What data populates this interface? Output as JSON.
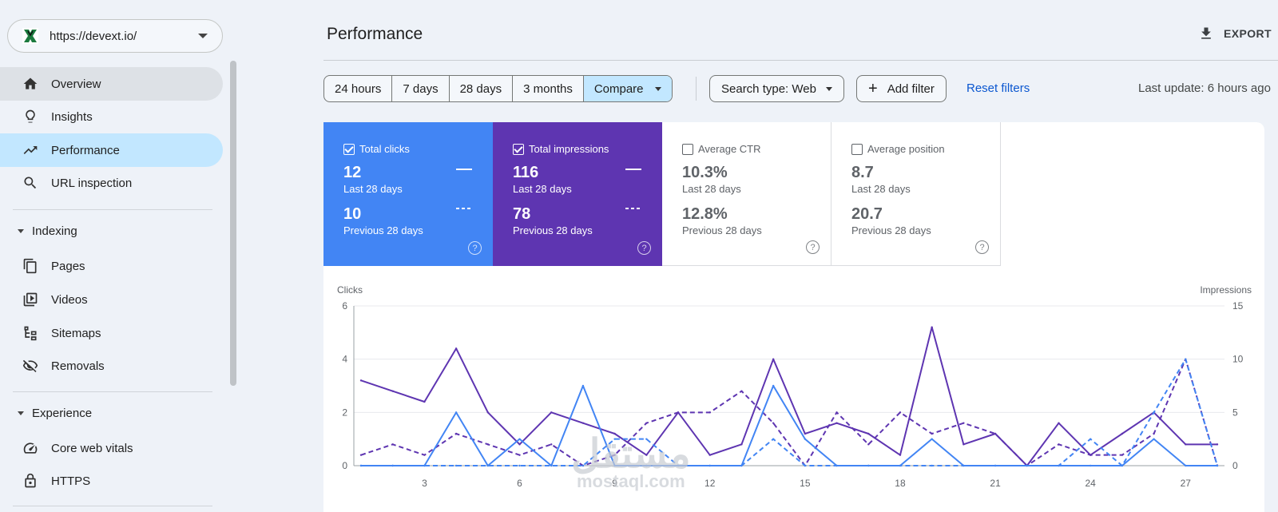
{
  "property": {
    "url": "https://devext.io/"
  },
  "nav": {
    "overview": "Overview",
    "insights": "Insights",
    "performance": "Performance",
    "url_inspection": "URL inspection",
    "indexing": "Indexing",
    "pages": "Pages",
    "videos": "Videos",
    "sitemaps": "Sitemaps",
    "removals": "Removals",
    "experience": "Experience",
    "core_web_vitals": "Core web vitals",
    "https": "HTTPS"
  },
  "header": {
    "title": "Performance",
    "export": "EXPORT"
  },
  "filters": {
    "ranges": [
      "24 hours",
      "7 days",
      "28 days",
      "3 months"
    ],
    "compare": "Compare",
    "search_type": "Search type: Web",
    "add_filter": "Add filter",
    "reset": "Reset filters",
    "last_update": "Last update: 6 hours ago"
  },
  "metrics": {
    "clicks": {
      "label": "Total clicks",
      "current": "12",
      "current_period": "Last 28 days",
      "previous": "10",
      "previous_period": "Previous 28 days",
      "checked": true
    },
    "impressions": {
      "label": "Total impressions",
      "current": "116",
      "current_period": "Last 28 days",
      "previous": "78",
      "previous_period": "Previous 28 days",
      "checked": true
    },
    "ctr": {
      "label": "Average CTR",
      "current": "10.3%",
      "current_period": "Last 28 days",
      "previous": "12.8%",
      "previous_period": "Previous 28 days",
      "checked": false
    },
    "position": {
      "label": "Average position",
      "current": "8.7",
      "current_period": "Last 28 days",
      "previous": "20.7",
      "previous_period": "Previous 28 days",
      "checked": false
    }
  },
  "colors": {
    "clicks": "#4285f4",
    "impressions": "#5e35b1",
    "accent": "#c2e7ff",
    "link": "#0b57d0"
  },
  "watermark": {
    "arabic": "مستقل",
    "latin": "mostaql.com"
  },
  "chart_data": {
    "type": "line",
    "ylabel_left": "Clicks",
    "ylabel_right": "Impressions",
    "ylim_left": [
      0,
      6
    ],
    "ylim_right": [
      0,
      15
    ],
    "y_ticks_left": [
      0,
      2,
      4,
      6
    ],
    "y_ticks_right": [
      0,
      5,
      10,
      15
    ],
    "x": [
      1,
      2,
      3,
      4,
      5,
      6,
      7,
      8,
      9,
      10,
      11,
      12,
      13,
      14,
      15,
      16,
      17,
      18,
      19,
      20,
      21,
      22,
      23,
      24,
      25,
      26,
      27,
      28
    ],
    "x_ticks": [
      3,
      6,
      9,
      12,
      15,
      18,
      21,
      24,
      27
    ],
    "grid": true,
    "series": [
      {
        "axis": "right",
        "style": "solid",
        "color": "#5e35b1",
        "values": [
          8,
          7,
          6,
          11,
          5,
          2,
          5,
          4,
          3,
          1,
          5,
          1,
          2,
          10,
          3,
          4,
          3,
          1,
          13,
          2,
          3,
          0,
          4,
          1,
          3,
          5,
          2,
          2
        ]
      },
      {
        "axis": "right",
        "style": "dashed",
        "color": "#5e35b1",
        "values": [
          1,
          2,
          1,
          3,
          2,
          1,
          2,
          0,
          1,
          4,
          5,
          5,
          7,
          4,
          0,
          5,
          2,
          5,
          3,
          4,
          3,
          0,
          2,
          1,
          1,
          3,
          10,
          0
        ]
      },
      {
        "axis": "left",
        "style": "solid",
        "color": "#4285f4",
        "values": [
          0,
          0,
          0,
          2,
          0,
          1,
          0,
          3,
          0,
          0,
          0,
          0,
          0,
          3,
          1,
          0,
          0,
          0,
          1,
          0,
          0,
          0,
          0,
          0,
          0,
          1,
          0,
          0
        ]
      },
      {
        "axis": "left",
        "style": "dashed",
        "color": "#4285f4",
        "values": [
          0,
          0,
          0,
          0,
          0,
          0,
          0,
          0,
          1,
          1,
          0,
          0,
          0,
          1,
          0,
          0,
          0,
          0,
          0,
          0,
          0,
          0,
          0,
          1,
          0,
          2,
          4,
          0
        ]
      }
    ]
  }
}
